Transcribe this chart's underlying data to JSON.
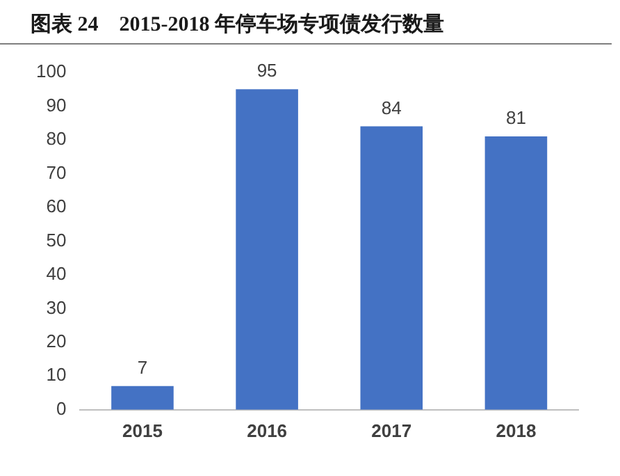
{
  "chart_data": {
    "type": "bar",
    "title": "图表 24    2015-2018 年停车场专项债发行数量",
    "categories": [
      "2015",
      "2016",
      "2017",
      "2018"
    ],
    "values": [
      7,
      95,
      84,
      81
    ],
    "color": "#4472c4",
    "ylim": [
      0,
      100
    ],
    "yticks": [
      0,
      10,
      20,
      30,
      40,
      50,
      60,
      70,
      80,
      90,
      100
    ],
    "grid": false,
    "data_labels": true,
    "legend": false
  }
}
